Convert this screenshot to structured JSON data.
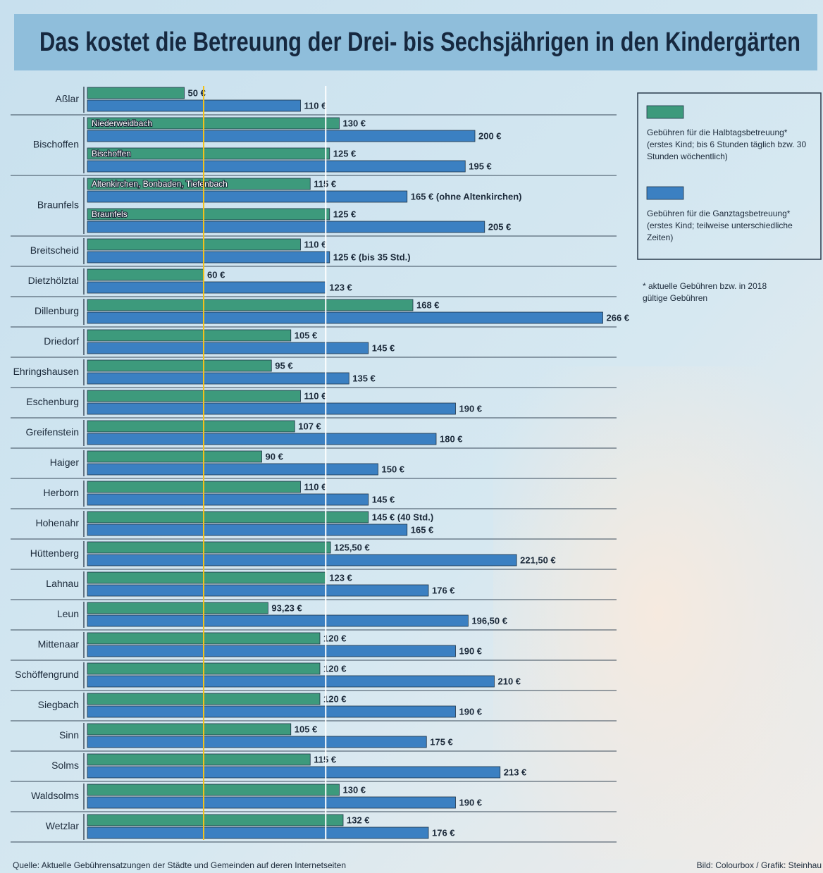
{
  "chart_data": {
    "type": "bar",
    "orientation": "horizontal",
    "title": "Das kostet die Betreuung der Drei- bis Sechsjährigen in den Kindergärten",
    "xlim": [
      0,
      300
    ],
    "series": [
      {
        "name": "Gebühren für die Halbtagsbetreuung*",
        "description": "(erstes Kind; bis 6 Stunden täglich bzw. 30 Stunden wöchentlich)",
        "color": "#3d9a7c"
      },
      {
        "name": "Gebühren für die Ganztagsbetreuung*",
        "description": "(erstes Kind; teilweise unterschiedliche Zeiten)",
        "color": "#3b80c2"
      }
    ],
    "footnote": "* aktuelle Gebühren bzw. in 2018 gültige Gebühren",
    "reference_lines": [
      {
        "value": 60,
        "color": "#f2c21b"
      },
      {
        "value": 123,
        "color": "#ffffff"
      }
    ],
    "groups": [
      {
        "name": "Aßlar",
        "rows": [
          {
            "values": [
              50,
              110
            ],
            "value_labels": [
              "50 €",
              "110 €"
            ]
          }
        ]
      },
      {
        "name": "Bischoffen",
        "rows": [
          {
            "sublabel": "Niederweidbach",
            "values": [
              130,
              200
            ],
            "value_labels": [
              "130 €",
              "200 €"
            ]
          },
          {
            "sublabel": "Bischoffen",
            "values": [
              125,
              195
            ],
            "value_labels": [
              "125 €",
              "195 €"
            ]
          }
        ]
      },
      {
        "name": "Braunfels",
        "rows": [
          {
            "sublabel": "Altenkirchen, Bonbaden, Tiefenbach",
            "values": [
              115,
              165
            ],
            "value_labels": [
              "115 €",
              "165 € (ohne Altenkirchen)"
            ]
          },
          {
            "sublabel": "Braunfels",
            "values": [
              125,
              205
            ],
            "value_labels": [
              "125 €",
              "205 €"
            ]
          }
        ]
      },
      {
        "name": "Breitscheid",
        "rows": [
          {
            "values": [
              110,
              125
            ],
            "value_labels": [
              "110 €",
              "125 € (bis 35 Std.)"
            ]
          }
        ]
      },
      {
        "name": "Dietzhölztal",
        "rows": [
          {
            "values": [
              60,
              123
            ],
            "value_labels": [
              "60 €",
              "123 €"
            ]
          }
        ]
      },
      {
        "name": "Dillenburg",
        "rows": [
          {
            "values": [
              168,
              266
            ],
            "value_labels": [
              "168 €",
              "266 €"
            ]
          }
        ]
      },
      {
        "name": "Driedorf",
        "rows": [
          {
            "values": [
              105,
              145
            ],
            "value_labels": [
              "105 €",
              "145 €"
            ]
          }
        ]
      },
      {
        "name": "Ehringshausen",
        "rows": [
          {
            "values": [
              95,
              135
            ],
            "value_labels": [
              "95 €",
              "135 €"
            ]
          }
        ]
      },
      {
        "name": "Eschenburg",
        "rows": [
          {
            "values": [
              110,
              190
            ],
            "value_labels": [
              "110 €",
              "190 €"
            ]
          }
        ]
      },
      {
        "name": "Greifenstein",
        "rows": [
          {
            "values": [
              107,
              180
            ],
            "value_labels": [
              "107 €",
              "180 €"
            ]
          }
        ]
      },
      {
        "name": "Haiger",
        "rows": [
          {
            "values": [
              90,
              150
            ],
            "value_labels": [
              "90 €",
              "150 €"
            ]
          }
        ]
      },
      {
        "name": "Herborn",
        "rows": [
          {
            "values": [
              110,
              145
            ],
            "value_labels": [
              "110 €",
              "145 €"
            ]
          }
        ]
      },
      {
        "name": "Hohenahr",
        "rows": [
          {
            "values": [
              145,
              165
            ],
            "value_labels": [
              "145 € (40 Std.)",
              "165 €"
            ]
          }
        ]
      },
      {
        "name": "Hüttenberg",
        "rows": [
          {
            "values": [
              125.5,
              221.5
            ],
            "value_labels": [
              "125,50 €",
              "221,50 €"
            ]
          }
        ]
      },
      {
        "name": "Lahnau",
        "rows": [
          {
            "values": [
              123,
              176
            ],
            "value_labels": [
              "123 €",
              "176 €"
            ]
          }
        ]
      },
      {
        "name": "Leun",
        "rows": [
          {
            "values": [
              93.23,
              196.5
            ],
            "value_labels": [
              "93,23 €",
              "196,50 €"
            ]
          }
        ]
      },
      {
        "name": "Mittenaar",
        "rows": [
          {
            "values": [
              120,
              190
            ],
            "value_labels": [
              "120 €",
              "190 €"
            ]
          }
        ]
      },
      {
        "name": "Schöffengrund",
        "rows": [
          {
            "values": [
              120,
              210
            ],
            "value_labels": [
              "120 €",
              "210 €"
            ]
          }
        ]
      },
      {
        "name": "Siegbach",
        "rows": [
          {
            "values": [
              120,
              190
            ],
            "value_labels": [
              "120 €",
              "190 €"
            ]
          }
        ]
      },
      {
        "name": "Sinn",
        "rows": [
          {
            "values": [
              105,
              175
            ],
            "value_labels": [
              "105 €",
              "175 €"
            ]
          }
        ]
      },
      {
        "name": "Solms",
        "rows": [
          {
            "values": [
              115,
              213
            ],
            "value_labels": [
              "115 €",
              "213 €"
            ]
          }
        ]
      },
      {
        "name": "Waldsolms",
        "rows": [
          {
            "values": [
              130,
              190
            ],
            "value_labels": [
              "130 €",
              "190 €"
            ]
          }
        ]
      },
      {
        "name": "Wetzlar",
        "rows": [
          {
            "values": [
              132,
              176
            ],
            "value_labels": [
              "132 €",
              "176 €"
            ]
          }
        ]
      }
    ],
    "source": "Quelle: Aktuelle Gebührensatzungen der Städte und Gemeinden auf deren Internetseiten",
    "credit": "Bild: Colourbox / Grafik: Steinhau"
  }
}
